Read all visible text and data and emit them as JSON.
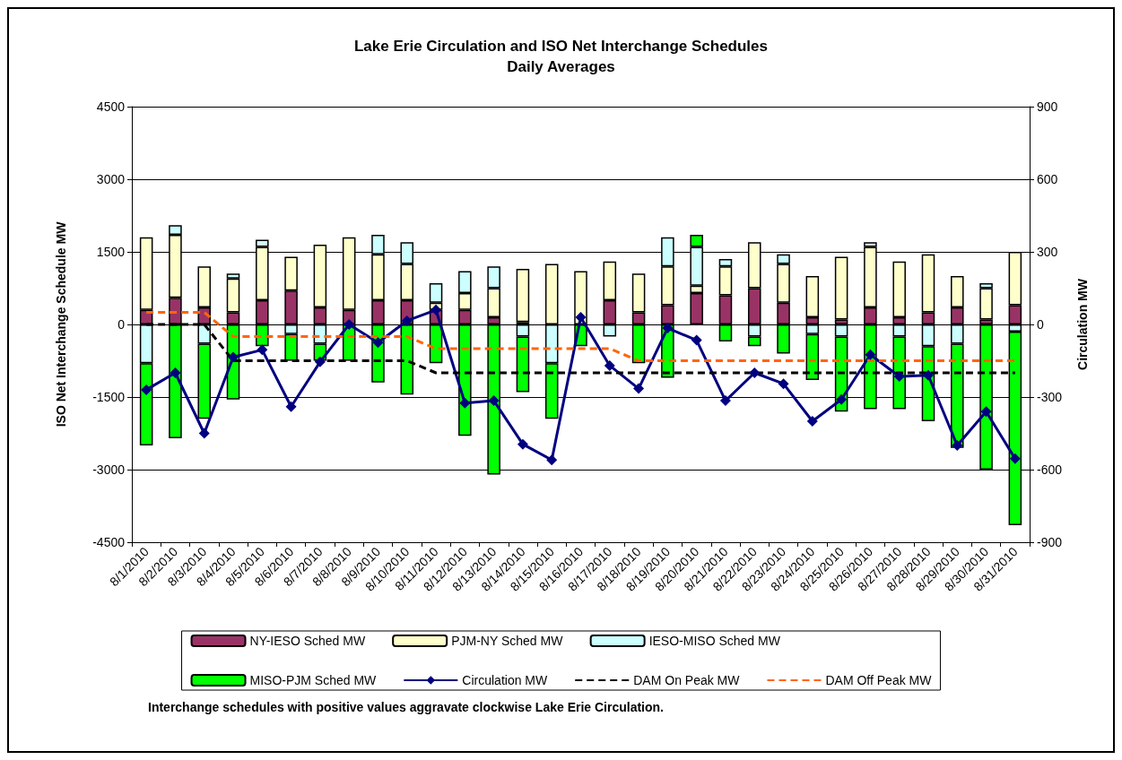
{
  "chart_data": {
    "type": "bar",
    "title": "Lake Erie Circulation and ISO Net Interchange Schedules",
    "subtitle": "Daily Averages",
    "ylabel": "ISO Net Interchange Schedule MW",
    "y2label": "Circulation MW",
    "categories": [
      "8/1/2010",
      "8/2/2010",
      "8/3/2010",
      "8/4/2010",
      "8/5/2010",
      "8/6/2010",
      "8/7/2010",
      "8/8/2010",
      "8/9/2010",
      "8/10/2010",
      "8/11/2010",
      "8/12/2010",
      "8/13/2010",
      "8/14/2010",
      "8/15/2010",
      "8/16/2010",
      "8/17/2010",
      "8/18/2010",
      "8/19/2010",
      "8/20/2010",
      "8/21/2010",
      "8/22/2010",
      "8/23/2010",
      "8/24/2010",
      "8/25/2010",
      "8/26/2010",
      "8/27/2010",
      "8/28/2010",
      "8/29/2010",
      "8/30/2010",
      "8/31/2010"
    ],
    "stacked": true,
    "series": [
      {
        "name": "NY-IESO Sched MW",
        "color": "#993366",
        "values": [
          300,
          550,
          350,
          250,
          500,
          700,
          350,
          300,
          500,
          500,
          300,
          300,
          150,
          50,
          null,
          null,
          500,
          250,
          400,
          650,
          600,
          750,
          450,
          150,
          100,
          350,
          150,
          250,
          350,
          100,
          400
        ]
      },
      {
        "name": "PJM-NY Sched MW",
        "color": "#ffffcc",
        "values": [
          1500,
          1300,
          850,
          700,
          1100,
          700,
          1300,
          1500,
          950,
          750,
          150,
          350,
          600,
          1100,
          1250,
          1100,
          800,
          800,
          800,
          150,
          600,
          950,
          800,
          850,
          1300,
          1250,
          1150,
          1200,
          650,
          650,
          1100
        ]
      },
      {
        "name": "IESO-MISO Sched MW",
        "color": "#ccffff",
        "values": [
          -800,
          200,
          -400,
          100,
          150,
          -200,
          -400,
          null,
          400,
          450,
          400,
          450,
          450,
          -250,
          -800,
          null,
          -250,
          null,
          600,
          800,
          150,
          -250,
          200,
          -200,
          -250,
          100,
          -250,
          -450,
          -400,
          100,
          -150
        ]
      },
      {
        "name": "MISO-PJM Sched MW",
        "color": "#00ff00",
        "values": [
          -1700,
          -2350,
          -1550,
          -1550,
          -450,
          -550,
          -350,
          -750,
          -1200,
          -1450,
          -800,
          -2300,
          -3100,
          -1150,
          -1150,
          -450,
          null,
          -800,
          -1100,
          250,
          -350,
          -200,
          -600,
          -950,
          -1550,
          -1750,
          -1500,
          -1550,
          -2150,
          -3000,
          -4000
        ]
      },
      {
        "name": "Circulation MW",
        "type": "line",
        "axis": "y2",
        "color": "#000080",
        "marker": "diamond",
        "line_style": "solid",
        "values": [
          -270,
          -200,
          -450,
          -135,
          -105,
          -340,
          -155,
          0,
          -75,
          15,
          60,
          -325,
          -315,
          -495,
          -560,
          30,
          -170,
          -265,
          -15,
          -65,
          -315,
          -200,
          -245,
          -400,
          -310,
          -125,
          -215,
          -210,
          -500,
          -360,
          -555
        ]
      },
      {
        "name": "DAM On Peak MW",
        "type": "line",
        "axis": "y2",
        "color": "#000000",
        "marker": "none",
        "line_style": "dashed",
        "values": [
          0,
          0,
          0,
          -150,
          -150,
          -150,
          -150,
          -150,
          -150,
          -150,
          -200,
          -200,
          -200,
          -200,
          -200,
          -200,
          -200,
          -200,
          -200,
          -200,
          -200,
          -200,
          -200,
          -200,
          -200,
          -200,
          -200,
          -200,
          -200,
          -200,
          -200
        ]
      },
      {
        "name": "DAM Off Peak MW",
        "type": "line",
        "axis": "y2",
        "color": "#ff6600",
        "marker": "none",
        "line_style": "dashed",
        "values": [
          50,
          50,
          50,
          -50,
          -50,
          -50,
          -50,
          -50,
          -50,
          -50,
          -100,
          -100,
          -100,
          -100,
          -100,
          -100,
          -100,
          -150,
          -150,
          -150,
          -150,
          -150,
          -150,
          -150,
          -150,
          -150,
          -150,
          -150,
          -150,
          -150,
          -150
        ]
      }
    ],
    "ylim": [
      -4500,
      4500
    ],
    "yticks": [
      -4500,
      -3000,
      -1500,
      0,
      1500,
      3000,
      4500
    ],
    "y2lim": [
      -900,
      900
    ],
    "y2ticks": [
      -900,
      -600,
      -300,
      0,
      300,
      600,
      900
    ],
    "grid": "y",
    "legend": "bottom",
    "annotations": [
      "Interchange schedules with positive values aggravate clockwise Lake Erie Circulation."
    ]
  }
}
